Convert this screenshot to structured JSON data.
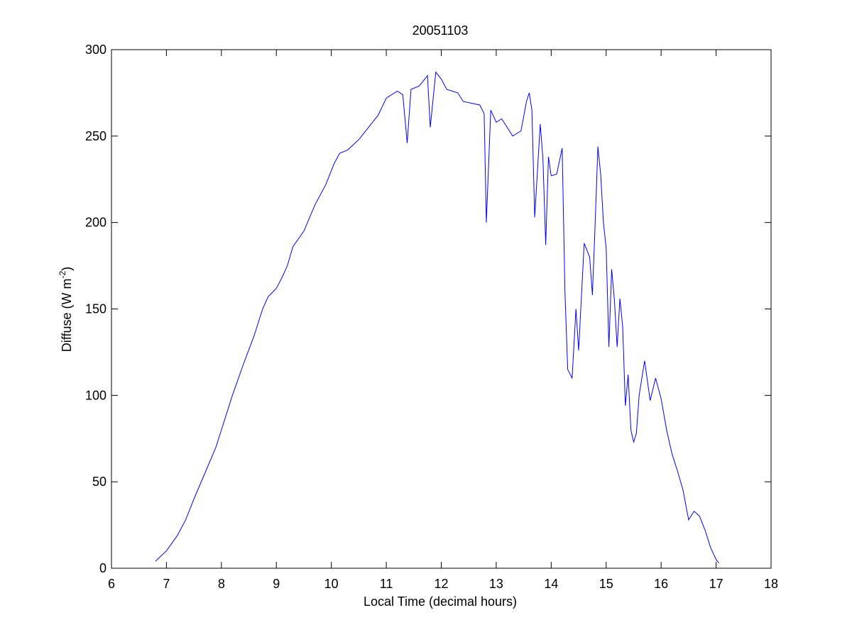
{
  "chart_data": {
    "type": "line",
    "title": "20051103",
    "xlabel": "Local Time (decimal hours)",
    "ylabel": {
      "main": "Diffuse (W m",
      "superscript": "-2",
      "close": ")"
    },
    "xlim": [
      6,
      18
    ],
    "ylim": [
      0,
      300
    ],
    "xticks": [
      6,
      7,
      8,
      9,
      10,
      11,
      12,
      13,
      14,
      15,
      16,
      17,
      18
    ],
    "yticks": [
      0,
      50,
      100,
      150,
      200,
      250,
      300
    ],
    "grid": false,
    "legend": "none",
    "series": [
      {
        "color": "#0000ff",
        "x": [
          6.8,
          7.0,
          7.2,
          7.35,
          7.5,
          7.7,
          7.9,
          8.0,
          8.2,
          8.4,
          8.6,
          8.75,
          8.85,
          9.0,
          9.1,
          9.2,
          9.3,
          9.5,
          9.7,
          9.9,
          10.05,
          10.15,
          10.3,
          10.5,
          10.7,
          10.85,
          11.0,
          11.2,
          11.3,
          11.38,
          11.45,
          11.6,
          11.75,
          11.8,
          11.9,
          12.0,
          12.1,
          12.3,
          12.4,
          12.55,
          12.7,
          12.78,
          12.82,
          12.9,
          13.0,
          13.1,
          13.3,
          13.45,
          13.55,
          13.6,
          13.65,
          13.7,
          13.8,
          13.85,
          13.9,
          13.95,
          14.0,
          14.1,
          14.2,
          14.25,
          14.3,
          14.38,
          14.45,
          14.5,
          14.6,
          14.7,
          14.75,
          14.8,
          14.85,
          14.9,
          14.95,
          15.0,
          15.05,
          15.1,
          15.15,
          15.2,
          15.25,
          15.3,
          15.35,
          15.4,
          15.45,
          15.5,
          15.55,
          15.6,
          15.7,
          15.8,
          15.9,
          16.0,
          16.1,
          16.2,
          16.3,
          16.4,
          16.5,
          16.6,
          16.7,
          16.8,
          16.9,
          17.0,
          17.05
        ],
        "y": [
          4,
          10,
          19,
          28,
          40,
          55,
          70,
          80,
          100,
          118,
          135,
          150,
          157,
          162,
          168,
          175,
          186,
          195,
          210,
          222,
          234,
          240,
          242,
          248,
          256,
          262,
          272,
          276,
          274,
          246,
          277,
          279,
          285,
          255,
          287,
          283,
          277,
          275,
          270,
          269,
          268,
          263,
          200,
          265,
          258,
          260,
          250,
          253,
          270,
          275,
          265,
          203,
          257,
          237,
          187,
          238,
          227,
          228,
          243,
          160,
          115,
          110,
          150,
          126,
          188,
          180,
          158,
          200,
          244,
          228,
          200,
          185,
          128,
          173,
          155,
          128,
          156,
          140,
          94,
          112,
          80,
          73,
          78,
          100,
          120,
          97,
          110,
          98,
          80,
          66,
          56,
          45,
          28,
          33,
          30,
          22,
          12,
          5,
          3
        ]
      }
    ]
  }
}
